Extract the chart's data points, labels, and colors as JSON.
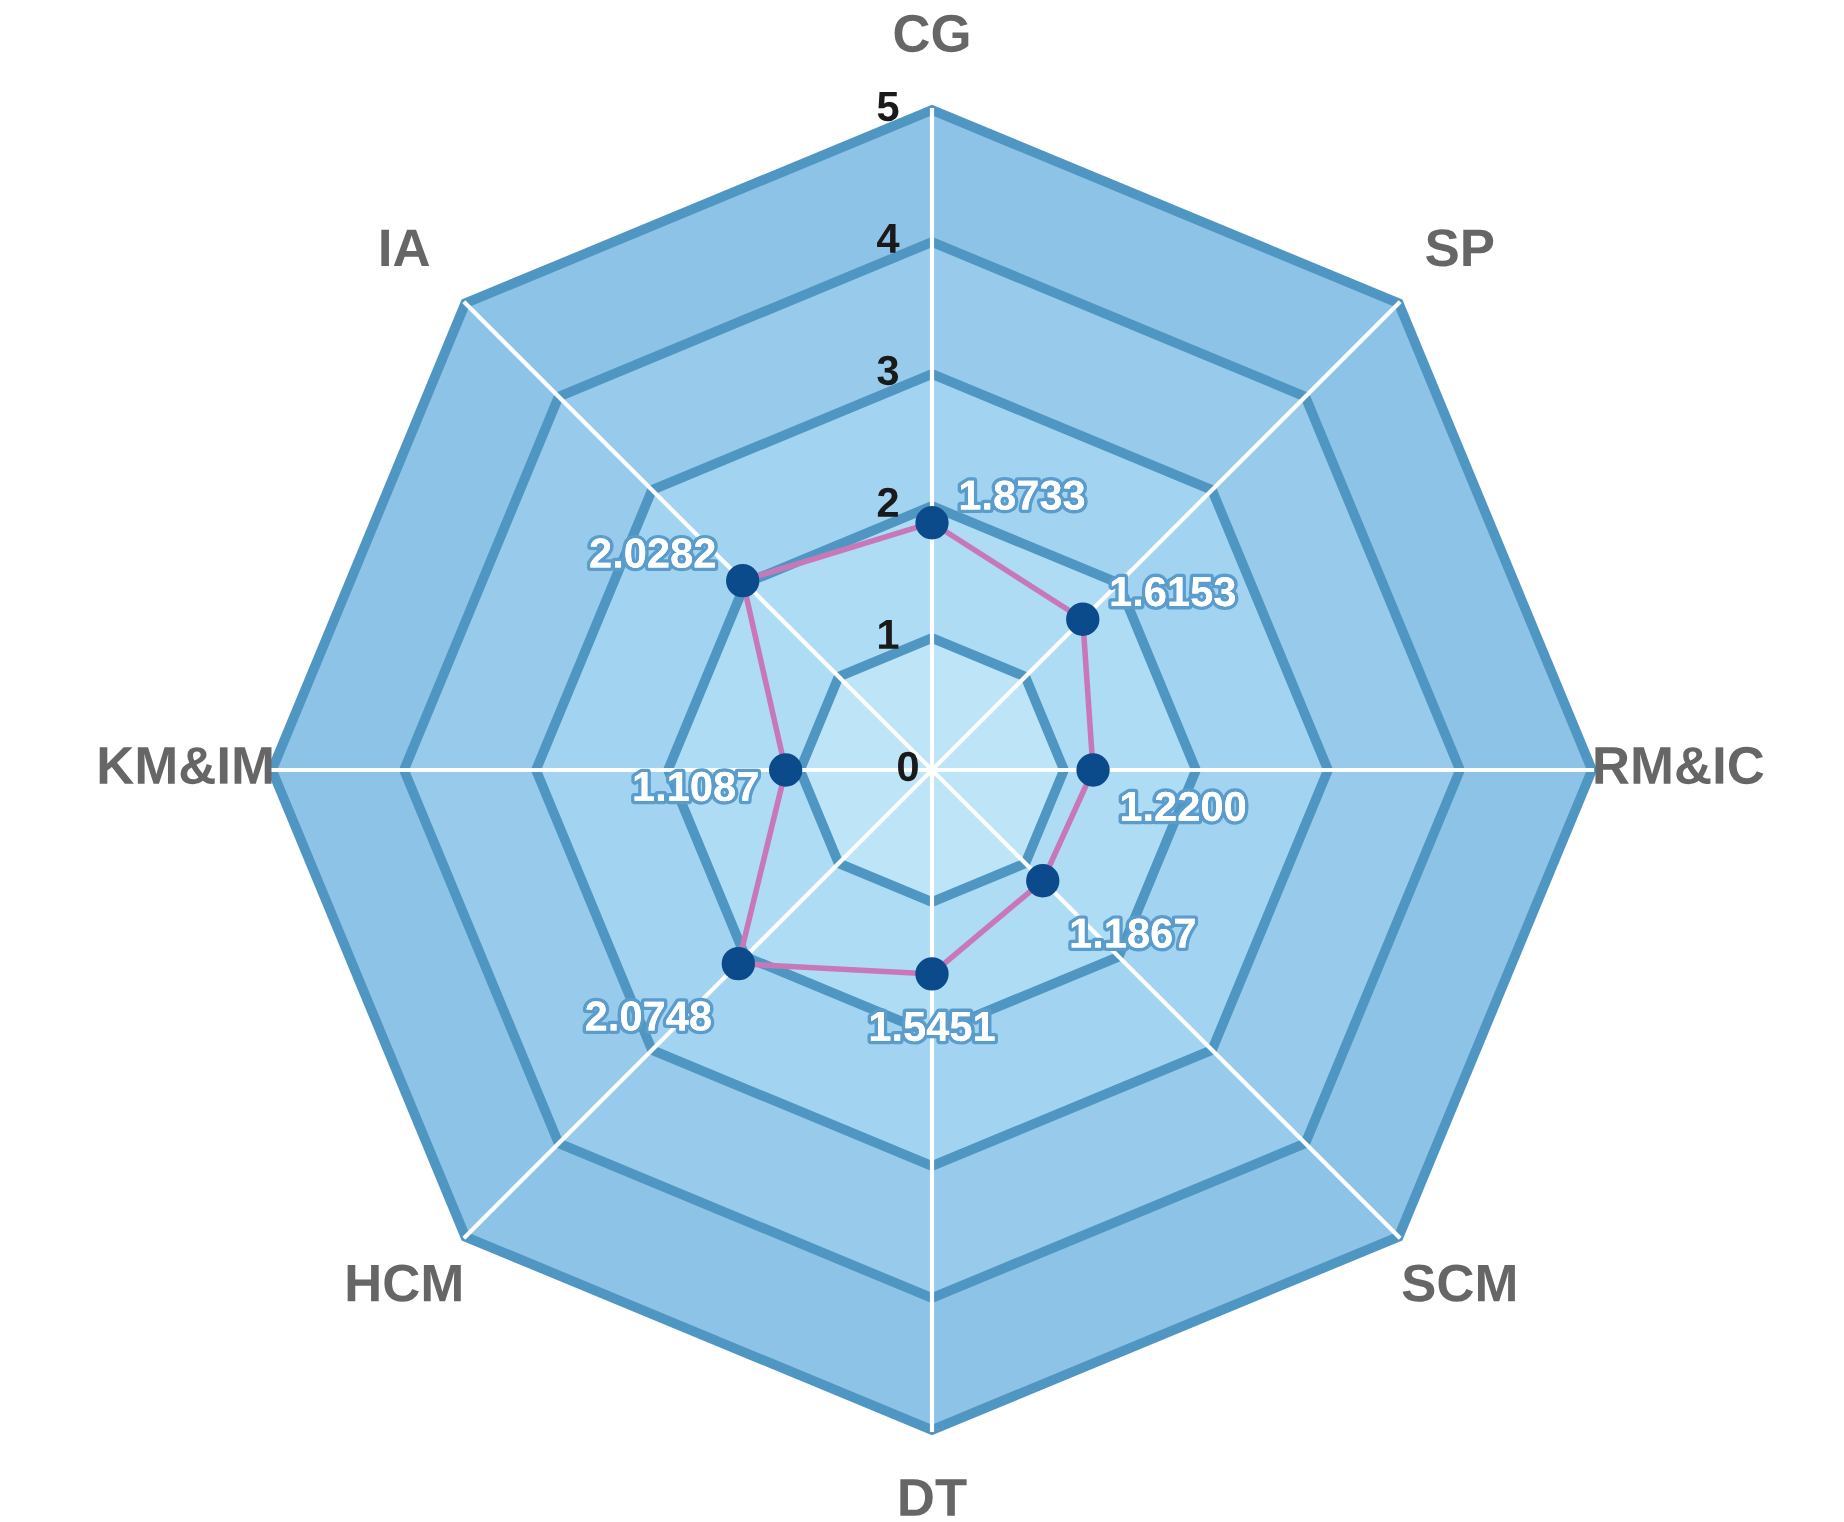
{
  "chart_data": {
    "type": "radar",
    "categories": [
      "CG",
      "SP",
      "RM&IC",
      "SCM",
      "DT",
      "HCM",
      "KM&IM",
      "IA"
    ],
    "series": [
      {
        "color": "#c878b8",
        "values": [
          1.8733,
          1.6153,
          1.22,
          1.1867,
          1.5451,
          2.0748,
          1.1087,
          2.0282
        ],
        "value_labels": [
          "1.8733",
          "1.6153",
          "1.2200",
          "1.1867",
          "1.5451",
          "2.0748",
          "1.1087",
          "2.0282"
        ]
      }
    ],
    "ylim": [
      0,
      5
    ],
    "yticks": [
      0,
      1,
      2,
      3,
      4,
      5
    ],
    "marker": "circle",
    "line_style": "solid",
    "grid": true
  }
}
